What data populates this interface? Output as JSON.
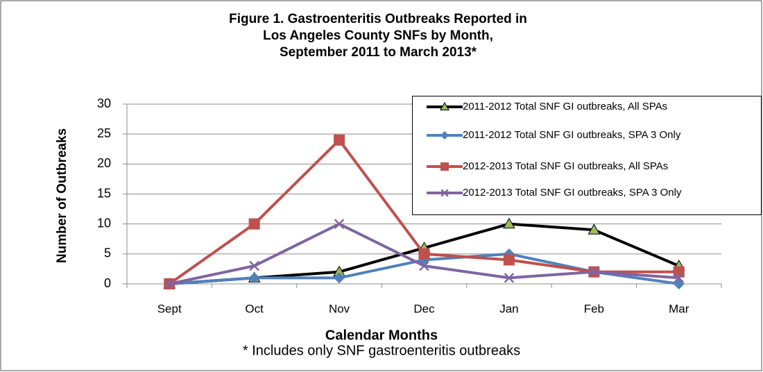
{
  "chart_data": {
    "type": "line",
    "title": [
      "Figure 1. Gastroenteritis Outbreaks Reported in",
      "Los Angeles County SNFs by Month,",
      "September 2011 to March 2013*"
    ],
    "x_label": "Calendar Months",
    "y_label": "Number of Outbreaks",
    "footnote": "* Includes only SNF gastroenteritis outbreaks",
    "categories": [
      "Sept",
      "Oct",
      "Nov",
      "Dec",
      "Jan",
      "Feb",
      "Mar"
    ],
    "series": [
      {
        "name": "2011-2012 Total SNF GI outbreaks, All SPAs",
        "color": "#000000",
        "marker": "triangle",
        "marker_color": "#9bbb59",
        "values": [
          0,
          1,
          2,
          6,
          10,
          9,
          3
        ]
      },
      {
        "name": "2011-2012 Total SNF GI outbreaks, SPA 3 Only",
        "color": "#4f81bd",
        "marker": "diamond",
        "marker_color": "#4f81bd",
        "values": [
          0,
          1,
          1,
          4,
          5,
          2,
          0
        ]
      },
      {
        "name": "2012-2013 Total SNF GI outbreaks, All SPAs",
        "color": "#c0504d",
        "marker": "square",
        "marker_color": "#c0504d",
        "values": [
          0,
          10,
          24,
          5,
          4,
          2,
          2
        ]
      },
      {
        "name": "2012-2013 Total SNF GI outbreaks, SPA 3 Only",
        "color": "#8064a2",
        "marker": "x",
        "marker_color": "#8064a2",
        "values": [
          0,
          3,
          10,
          3,
          1,
          2,
          1
        ]
      }
    ],
    "ylim": [
      0,
      30
    ],
    "yticks": [
      0,
      5,
      10,
      15,
      20,
      25,
      30
    ],
    "grid": true,
    "legend": "top-right"
  }
}
